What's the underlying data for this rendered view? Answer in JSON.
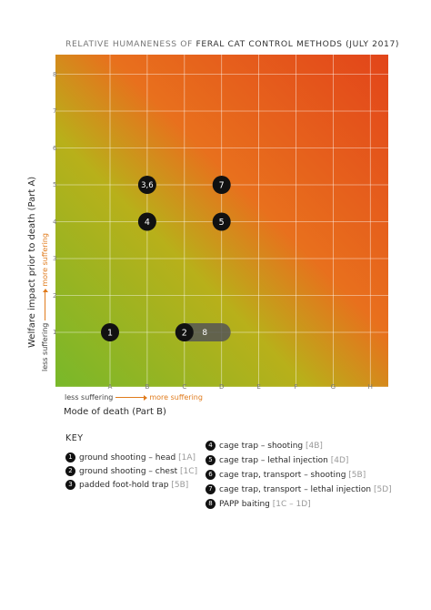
{
  "title": {
    "prefix": "RELATIVE HUMANENESS OF ",
    "main": "FERAL CAT CONTROL METHODS (JULY 2017)"
  },
  "axes": {
    "y_label": "Welfare impact prior to death (Part A)",
    "x_label": "Mode of death (Part B)",
    "x_less": "less suffering",
    "x_more": "more suffering",
    "y_less": "less suffering",
    "y_more": "more suffering"
  },
  "colors": {
    "green": "#78b82a",
    "yellow": "#b8b01a",
    "orange": "#e8701d",
    "red": "#e2451a",
    "marker": "#111111",
    "range_bar": "#555555"
  },
  "chart_data": {
    "type": "scatter",
    "x_categories": [
      "A",
      "B",
      "C",
      "D",
      "E",
      "F",
      "G",
      "H"
    ],
    "y_ticks": [
      "1",
      "2",
      "3",
      "4",
      "5",
      "6",
      "7",
      "8"
    ],
    "grid": true,
    "points": [
      {
        "label": "1",
        "x": "A",
        "y": 1
      },
      {
        "label": "2",
        "x": "C",
        "y": 1
      },
      {
        "label": "3,6",
        "x": "B",
        "y": 5
      },
      {
        "label": "7",
        "x": "D",
        "y": 5
      },
      {
        "label": "4",
        "x": "B",
        "y": 4
      },
      {
        "label": "5",
        "x": "D",
        "y": 4
      }
    ],
    "ranges": [
      {
        "label": "8",
        "x_from": "C",
        "x_to": "D",
        "y": 1
      }
    ]
  },
  "key": {
    "title": "KEY",
    "items": [
      {
        "num": "1",
        "text": "ground shooting – head",
        "code": "[1A]"
      },
      {
        "num": "2",
        "text": "ground shooting – chest",
        "code": "[1C]"
      },
      {
        "num": "3",
        "text": "padded foot-hold trap",
        "code": "[5B]"
      },
      {
        "num": "4",
        "text": "cage trap – shooting",
        "code": "[4B]"
      },
      {
        "num": "5",
        "text": "cage trap – lethal injection",
        "code": "[4D]"
      },
      {
        "num": "6",
        "text": "cage trap, transport – shooting",
        "code": "[5B]"
      },
      {
        "num": "7",
        "text": "cage trap, transport – lethal injection",
        "code": "[5D]"
      },
      {
        "num": "8",
        "text": "PAPP baiting",
        "code": "[1C – 1D]"
      }
    ]
  }
}
